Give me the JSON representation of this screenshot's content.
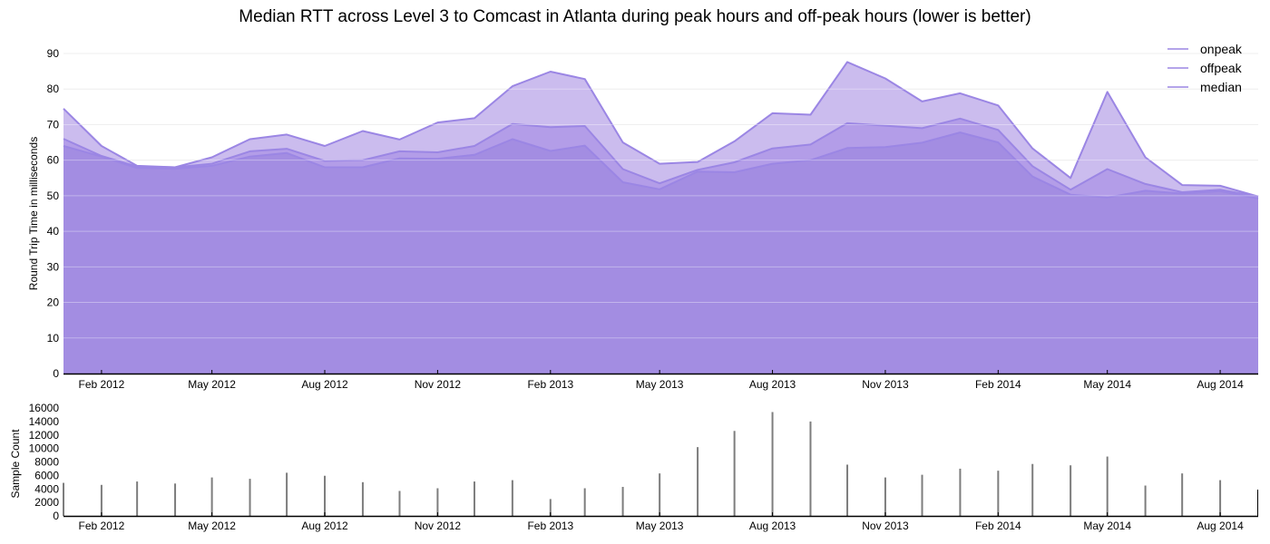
{
  "chart_data": [
    {
      "type": "area",
      "title": "Median RTT across Level 3 to Comcast in Atlanta during peak hours and off-peak hours (lower is better)",
      "ylabel": "Round Trip Time in milliseconds",
      "xlabel": "",
      "ylim": [
        0,
        90
      ],
      "yticks": [
        0,
        10,
        20,
        30,
        40,
        50,
        60,
        70,
        80,
        90
      ],
      "xticks": [
        {
          "date": "2012-02-01",
          "label": "Feb 2012"
        },
        {
          "date": "2012-05-01",
          "label": "May 2012"
        },
        {
          "date": "2012-08-01",
          "label": "Aug 2012"
        },
        {
          "date": "2012-11-01",
          "label": "Nov 2012"
        },
        {
          "date": "2013-02-01",
          "label": "Feb 2013"
        },
        {
          "date": "2013-05-01",
          "label": "May 2013"
        },
        {
          "date": "2013-08-01",
          "label": "Aug 2013"
        },
        {
          "date": "2013-11-01",
          "label": "Nov 2013"
        },
        {
          "date": "2014-02-01",
          "label": "Feb 2014"
        },
        {
          "date": "2014-05-01",
          "label": "May 2014"
        },
        {
          "date": "2014-08-01",
          "label": "Aug 2014"
        }
      ],
      "xlim": [
        "2012-01-01",
        "2014-09-01"
      ],
      "grid": true,
      "legend_position": "top-right",
      "x": [
        "2012-01-01",
        "2012-02-01",
        "2012-03-01",
        "2012-04-01",
        "2012-05-01",
        "2012-06-01",
        "2012-07-01",
        "2012-08-01",
        "2012-09-01",
        "2012-10-01",
        "2012-11-01",
        "2012-12-01",
        "2013-01-01",
        "2013-02-01",
        "2013-03-01",
        "2013-04-01",
        "2013-05-01",
        "2013-06-01",
        "2013-07-01",
        "2013-08-01",
        "2013-09-01",
        "2013-10-01",
        "2013-11-01",
        "2013-12-01",
        "2014-01-01",
        "2014-02-01",
        "2014-03-01",
        "2014-04-01",
        "2014-05-01",
        "2014-06-01",
        "2014-07-01",
        "2014-08-01",
        "2014-09-01"
      ],
      "series": [
        {
          "name": "onpeak",
          "color": "#cbbcee",
          "values": [
            74.5,
            64,
            58.4,
            58,
            60.8,
            65.9,
            67.2,
            64,
            68.2,
            65.8,
            70.6,
            71.8,
            80.8,
            84.9,
            82.8,
            65,
            59,
            59.5,
            65.3,
            73.2,
            72.8,
            87.6,
            83,
            76.5,
            78.8,
            75.4,
            63.3,
            55,
            79.2,
            60.8,
            53,
            52.8,
            49.8
          ]
        },
        {
          "name": "offpeak",
          "color": "#b39de8",
          "values": [
            66,
            61.2,
            58.2,
            58,
            59,
            62.5,
            63.2,
            59.8,
            60,
            62.5,
            62.2,
            64,
            70.2,
            69.3,
            69.6,
            57.5,
            53.5,
            57.3,
            59.4,
            63.3,
            64.4,
            70.4,
            69.7,
            69,
            71.7,
            68.5,
            58.3,
            51.7,
            57.5,
            53.3,
            51,
            51.7,
            49.8
          ]
        },
        {
          "name": "median",
          "color": "#a38de2",
          "values": [
            64,
            61,
            57.8,
            57.6,
            58.4,
            61,
            62,
            58,
            58,
            60.5,
            60.4,
            61.5,
            65.9,
            62.6,
            64.1,
            53.8,
            51.8,
            56.8,
            56.6,
            59,
            60,
            63.4,
            63.7,
            64.9,
            67.8,
            65,
            55.4,
            50.3,
            49.5,
            51.4,
            50.6,
            51.3,
            49.2
          ]
        }
      ]
    },
    {
      "type": "bar",
      "ylabel": "Sample Count",
      "xlabel": "",
      "ylim": [
        0,
        16000
      ],
      "yticks": [
        0,
        2000,
        4000,
        6000,
        8000,
        10000,
        12000,
        14000,
        16000
      ],
      "color": "#7d7d7d",
      "x": [
        "2012-01-01",
        "2012-02-01",
        "2012-03-01",
        "2012-04-01",
        "2012-05-01",
        "2012-06-01",
        "2012-07-01",
        "2012-08-01",
        "2012-09-01",
        "2012-10-01",
        "2012-11-01",
        "2012-12-01",
        "2013-01-01",
        "2013-02-01",
        "2013-03-01",
        "2013-04-01",
        "2013-05-01",
        "2013-06-01",
        "2013-07-01",
        "2013-08-01",
        "2013-09-01",
        "2013-10-01",
        "2013-11-01",
        "2013-12-01",
        "2014-01-01",
        "2014-02-01",
        "2014-03-01",
        "2014-04-01",
        "2014-05-01",
        "2014-06-01",
        "2014-07-01",
        "2014-08-01"
      ],
      "values": [
        4900,
        4600,
        5100,
        4800,
        5700,
        5500,
        6400,
        5950,
        5000,
        3700,
        4100,
        5100,
        5300,
        2500,
        4100,
        4300,
        6300,
        10200,
        12600,
        15400,
        14000,
        7600,
        5700,
        6100,
        7000,
        6700,
        7700,
        7500,
        8800,
        4500,
        6300,
        5300
      ]
    }
  ]
}
